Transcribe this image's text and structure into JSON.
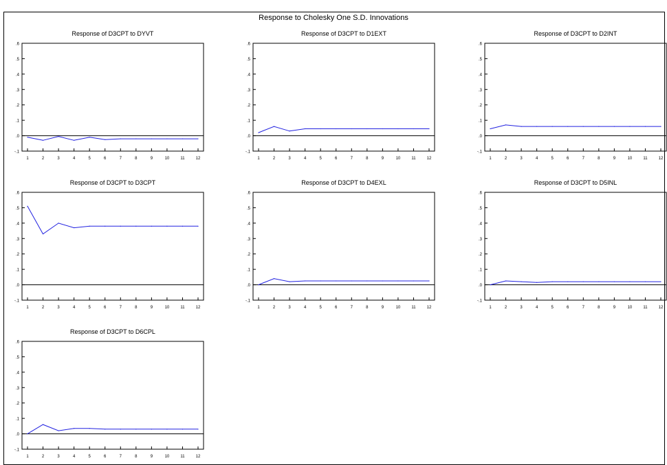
{
  "page_title": "Response to Cholesky One S.D. Innovations",
  "colors": {
    "line": "#2020e0",
    "frame": "#000000"
  },
  "chart_data": [
    {
      "type": "line",
      "title": "Response of D3CPT to DYVT",
      "x": [
        1,
        2,
        3,
        4,
        5,
        6,
        7,
        8,
        9,
        10,
        11,
        12
      ],
      "y_ticks": [
        ".6",
        ".5",
        ".4",
        ".3",
        ".2",
        ".1",
        ".0",
        "-.1"
      ],
      "x_ticks": [
        "1",
        "2",
        "3",
        "4",
        "5",
        "6",
        "7",
        "8",
        "9",
        "10",
        "11",
        "12"
      ],
      "ylim": [
        -0.1,
        0.6
      ],
      "series": [
        {
          "values": [
            -0.01,
            -0.03,
            -0.005,
            -0.03,
            -0.01,
            -0.025,
            -0.02,
            -0.02,
            -0.02,
            -0.02,
            -0.02,
            -0.02
          ]
        }
      ]
    },
    {
      "type": "line",
      "title": "Response of D3CPT to D1EXT",
      "x": [
        1,
        2,
        3,
        4,
        5,
        6,
        7,
        8,
        9,
        10,
        11,
        12
      ],
      "y_ticks": [
        ".6",
        ".5",
        ".4",
        ".3",
        ".2",
        ".1",
        ".0",
        "-.1"
      ],
      "x_ticks": [
        "1",
        "2",
        "3",
        "4",
        "5",
        "6",
        "7",
        "8",
        "9",
        "10",
        "11",
        "12"
      ],
      "ylim": [
        -0.1,
        0.6
      ],
      "series": [
        {
          "values": [
            0.02,
            0.06,
            0.03,
            0.045,
            0.045,
            0.045,
            0.045,
            0.045,
            0.045,
            0.045,
            0.045,
            0.045
          ]
        }
      ]
    },
    {
      "type": "line",
      "title": "Response of D3CPT to D2INT",
      "x": [
        1,
        2,
        3,
        4,
        5,
        6,
        7,
        8,
        9,
        10,
        11,
        12
      ],
      "y_ticks": [
        ".6",
        ".5",
        ".4",
        ".3",
        ".2",
        ".1",
        ".0",
        "-.1"
      ],
      "x_ticks": [
        "1",
        "2",
        "3",
        "4",
        "5",
        "6",
        "7",
        "8",
        "9",
        "10",
        "11",
        "12"
      ],
      "ylim": [
        -0.1,
        0.6
      ],
      "series": [
        {
          "values": [
            0.045,
            0.07,
            0.06,
            0.06,
            0.06,
            0.06,
            0.06,
            0.06,
            0.06,
            0.06,
            0.06,
            0.06
          ]
        }
      ]
    },
    {
      "type": "line",
      "title": "Response of D3CPT to D3CPT",
      "x": [
        1,
        2,
        3,
        4,
        5,
        6,
        7,
        8,
        9,
        10,
        11,
        12
      ],
      "y_ticks": [
        ".6",
        ".5",
        ".4",
        ".3",
        ".2",
        ".1",
        ".0",
        "-.1"
      ],
      "x_ticks": [
        "1",
        "2",
        "3",
        "4",
        "5",
        "6",
        "7",
        "8",
        "9",
        "10",
        "11",
        "12"
      ],
      "ylim": [
        -0.1,
        0.6
      ],
      "series": [
        {
          "values": [
            0.51,
            0.33,
            0.4,
            0.37,
            0.38,
            0.38,
            0.38,
            0.38,
            0.38,
            0.38,
            0.38,
            0.38
          ]
        }
      ]
    },
    {
      "type": "line",
      "title": "Response of D3CPT to D4EXL",
      "x": [
        1,
        2,
        3,
        4,
        5,
        6,
        7,
        8,
        9,
        10,
        11,
        12
      ],
      "y_ticks": [
        ".6",
        ".5",
        ".4",
        ".3",
        ".2",
        ".1",
        ".0",
        "-.1"
      ],
      "x_ticks": [
        "1",
        "2",
        "3",
        "4",
        "5",
        "6",
        "7",
        "8",
        "9",
        "10",
        "11",
        "12"
      ],
      "ylim": [
        -0.1,
        0.6
      ],
      "series": [
        {
          "values": [
            0.0,
            0.04,
            0.02,
            0.025,
            0.025,
            0.025,
            0.025,
            0.025,
            0.025,
            0.025,
            0.025,
            0.025
          ]
        }
      ]
    },
    {
      "type": "line",
      "title": "Response of D3CPT to D5INL",
      "x": [
        1,
        2,
        3,
        4,
        5,
        6,
        7,
        8,
        9,
        10,
        11,
        12
      ],
      "y_ticks": [
        ".6",
        ".5",
        ".4",
        ".3",
        ".2",
        ".1",
        ".0",
        "-.1"
      ],
      "x_ticks": [
        "1",
        "2",
        "3",
        "4",
        "5",
        "6",
        "7",
        "8",
        "9",
        "10",
        "11",
        "12"
      ],
      "ylim": [
        -0.1,
        0.6
      ],
      "series": [
        {
          "values": [
            0.0,
            0.025,
            0.02,
            0.015,
            0.02,
            0.02,
            0.02,
            0.02,
            0.02,
            0.02,
            0.02,
            0.02
          ]
        }
      ]
    },
    {
      "type": "line",
      "title": "Response of D3CPT to D6CPL",
      "x": [
        1,
        2,
        3,
        4,
        5,
        6,
        7,
        8,
        9,
        10,
        11,
        12
      ],
      "y_ticks": [
        ".6",
        ".5",
        ".4",
        ".3",
        ".2",
        ".1",
        ".0",
        "-.1"
      ],
      "x_ticks": [
        "1",
        "2",
        "3",
        "4",
        "5",
        "6",
        "7",
        "8",
        "9",
        "10",
        "11",
        "12"
      ],
      "ylim": [
        -0.1,
        0.6
      ],
      "series": [
        {
          "values": [
            0.0,
            0.06,
            0.02,
            0.035,
            0.035,
            0.03,
            0.03,
            0.03,
            0.03,
            0.03,
            0.03,
            0.03
          ]
        }
      ]
    }
  ]
}
